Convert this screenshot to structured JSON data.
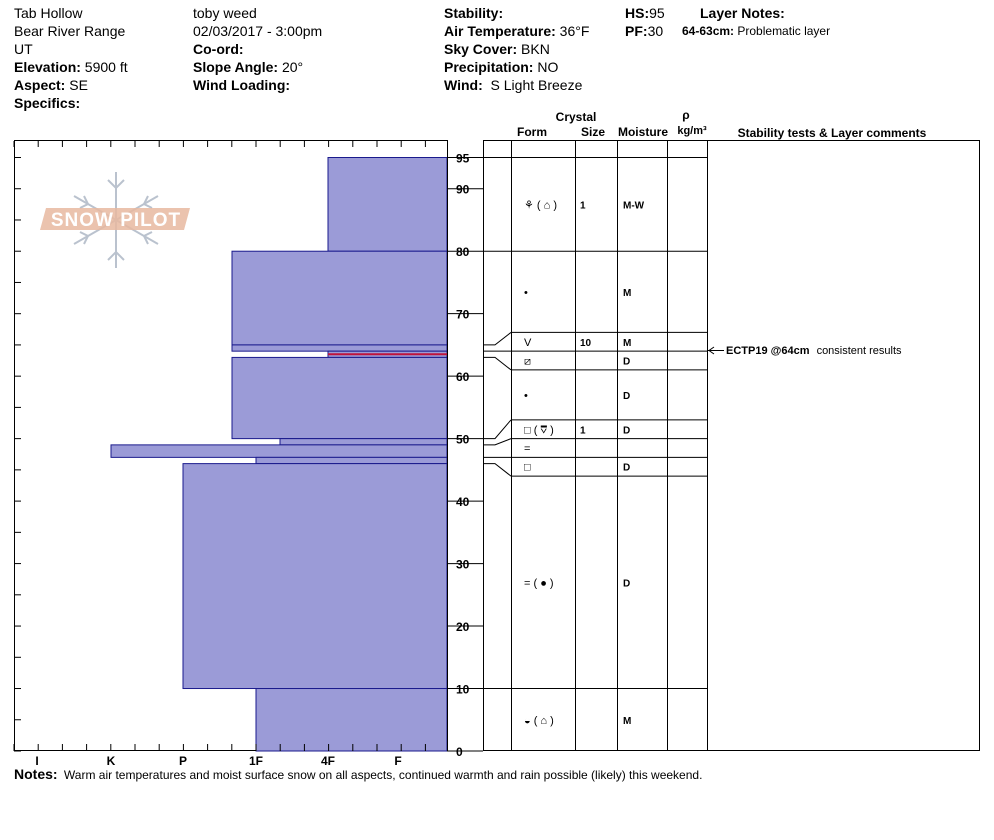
{
  "header": {
    "location": "Tab Hollow",
    "range": "Bear River Range",
    "state": "UT",
    "elevation_label": "Elevation:",
    "elevation": "5900 ft",
    "aspect_label": "Aspect:",
    "aspect": "SE",
    "specifics_label": "Specifics:",
    "observer": "toby weed",
    "datetime": "02/03/2017 - 3:00pm",
    "coord_label": "Co-ord:",
    "slope_label": "Slope Angle:",
    "slope": "20°",
    "wind_loading_label": "Wind Loading:",
    "stability_label": "Stability:",
    "air_temp_label": "Air Temperature:",
    "air_temp": "36°F",
    "sky_label": "Sky Cover:",
    "sky": "BKN",
    "precip_label": "Precipitation:",
    "precip": "NO",
    "wind_label": "Wind:",
    "wind": "S Light Breeze",
    "hs_label": "HS:",
    "hs": "95",
    "pf_label": "PF:",
    "pf": "30",
    "layer_notes_label": "Layer Notes:",
    "layer_note_range": "64-63cm:",
    "layer_note_text": "Problematic layer"
  },
  "table_headers": {
    "crystal": "Crystal",
    "form": "Form",
    "size": "Size",
    "moisture": "Moisture",
    "rho": "ρ",
    "density_unit": "kg/m³",
    "comments": "Stability tests & Layer comments"
  },
  "notes": {
    "label": "Notes:",
    "text": "Warm air temperatures and moist surface snow on all aspects, continued warmth and  rain possible (likely) this weekend."
  },
  "watermark": {
    "text": "SNOW PILOT"
  },
  "stability_test": {
    "depth": 64,
    "result": "ECTP19 @64cm",
    "comment": "consistent results"
  },
  "colors": {
    "hardness_fill": "#9b9bd7",
    "hardness_edge": "#1a1a8c",
    "red_layer": "#c0143c",
    "watermark": "#e8b8a0"
  },
  "chart_data": {
    "type": "bar",
    "title": "",
    "xlabel": "",
    "ylabel": "",
    "ylim": [
      0,
      95
    ],
    "yticks": [
      0,
      10,
      20,
      30,
      40,
      50,
      60,
      70,
      80,
      90,
      95
    ],
    "hardness_scale": [
      "I",
      "K",
      "P",
      "1F",
      "4F",
      "F"
    ],
    "hardness_layers": [
      {
        "top": 95,
        "bottom": 80,
        "hardness": "4F"
      },
      {
        "top": 80,
        "bottom": 65,
        "hardness": "1F-"
      },
      {
        "top": 65,
        "bottom": 64,
        "hardness": "1F-"
      },
      {
        "top": 64,
        "bottom": 63,
        "hardness": "4F",
        "highlight": true
      },
      {
        "top": 63,
        "bottom": 50,
        "hardness": "1F-"
      },
      {
        "top": 50,
        "bottom": 49,
        "hardness": "1F+"
      },
      {
        "top": 49,
        "bottom": 47,
        "hardness": "K"
      },
      {
        "top": 47,
        "bottom": 46,
        "hardness": "1F"
      },
      {
        "top": 46,
        "bottom": 10,
        "hardness": "P"
      },
      {
        "top": 10,
        "bottom": 0,
        "hardness": "1F"
      }
    ],
    "crystal_layers": [
      {
        "top": 95,
        "bottom": 80,
        "form": "⚘ ( ⌂ )",
        "size": "1",
        "moisture": "M-W"
      },
      {
        "top": 80,
        "bottom": 67,
        "form": "•",
        "size": "",
        "moisture": "M"
      },
      {
        "top": 67,
        "bottom": 64,
        "form": "V",
        "size": "10",
        "moisture": "M"
      },
      {
        "top": 64,
        "bottom": 61,
        "form": "⧄",
        "size": "",
        "moisture": "D"
      },
      {
        "top": 61,
        "bottom": 53,
        "form": "•",
        "size": "",
        "moisture": "D"
      },
      {
        "top": 53,
        "bottom": 50,
        "form": "□ ( ⩢ )",
        "size": "1",
        "moisture": "D"
      },
      {
        "top": 50,
        "bottom": 47,
        "form": "=",
        "size": "",
        "moisture": ""
      },
      {
        "top": 47,
        "bottom": 44,
        "form": "□",
        "size": "",
        "moisture": "D"
      },
      {
        "top": 44,
        "bottom": 10,
        "form": "= ( ● )",
        "size": "",
        "moisture": "D"
      },
      {
        "top": 10,
        "bottom": 0,
        "form": "◒ ( ⌂ )",
        "size": "",
        "moisture": "M"
      }
    ]
  }
}
